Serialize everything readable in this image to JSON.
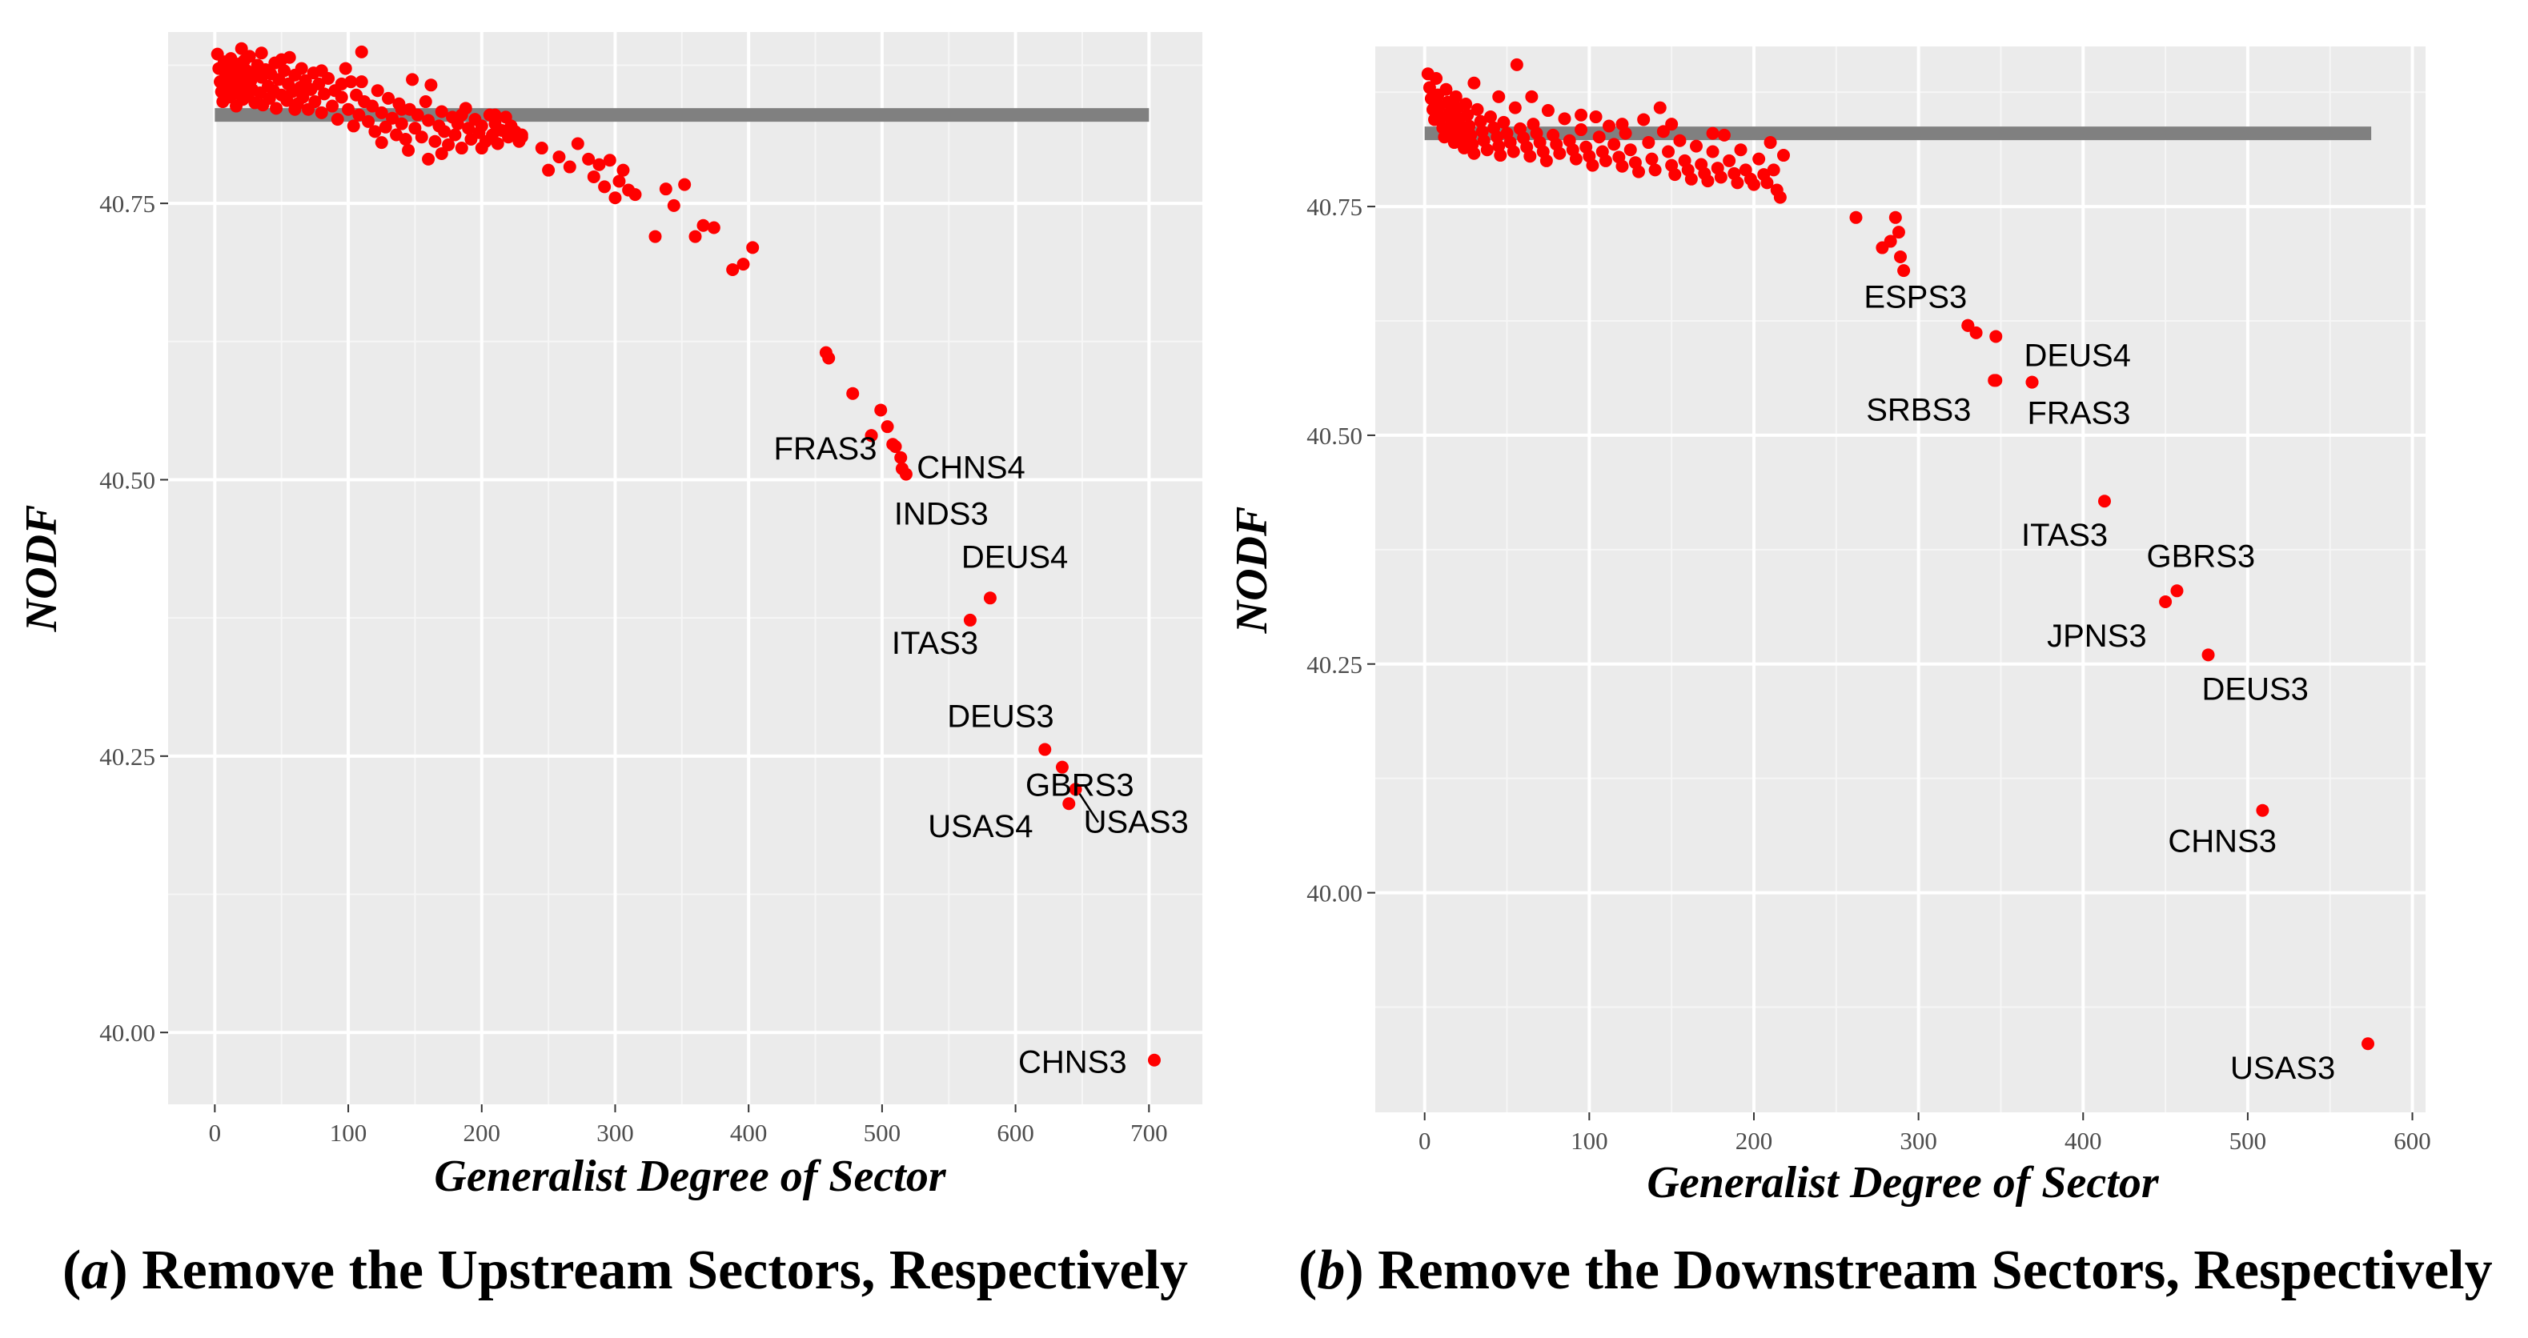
{
  "chart_data": [
    {
      "type": "scatter",
      "panel": "a",
      "caption_letter": "a",
      "caption_text": " Remove the Upstream Sectors,  Respectively",
      "xlabel": "Generalist Degree of Sector",
      "ylabel": "NODF",
      "xlim": [
        -35,
        740
      ],
      "ylim": [
        39.935,
        40.905
      ],
      "xticks": [
        0,
        100,
        200,
        300,
        400,
        500,
        600,
        700
      ],
      "yticks": [
        40.0,
        40.25,
        40.5,
        40.75
      ],
      "ytick_labels": [
        "40.00",
        "40.25",
        "40.50",
        "40.75"
      ],
      "grid": true,
      "point_color": "#ff0000",
      "reference_line": {
        "x": [
          0,
          700
        ],
        "y": 40.83,
        "color": "#808080"
      },
      "cluster_points": [
        [
          2,
          40.885
        ],
        [
          3,
          40.872
        ],
        [
          4,
          40.86
        ],
        [
          5,
          40.851
        ],
        [
          6,
          40.842
        ],
        [
          7,
          40.878
        ],
        [
          8,
          40.865
        ],
        [
          9,
          40.855
        ],
        [
          10,
          40.846
        ],
        [
          11,
          40.869
        ],
        [
          12,
          40.881
        ],
        [
          13,
          40.858
        ],
        [
          14,
          40.849
        ],
        [
          15,
          40.873
        ],
        [
          16,
          40.838
        ],
        [
          17,
          40.862
        ],
        [
          18,
          40.876
        ],
        [
          19,
          40.852
        ],
        [
          20,
          40.866
        ],
        [
          21,
          40.844
        ],
        [
          22,
          40.879
        ],
        [
          23,
          40.857
        ],
        [
          24,
          40.87
        ],
        [
          25,
          40.848
        ],
        [
          26,
          40.883
        ],
        [
          27,
          40.861
        ],
        [
          28,
          40.853
        ],
        [
          29,
          40.868
        ],
        [
          30,
          40.841
        ],
        [
          32,
          40.875
        ],
        [
          34,
          40.85
        ],
        [
          35,
          40.864
        ],
        [
          36,
          40.839
        ],
        [
          38,
          40.871
        ],
        [
          40,
          40.856
        ],
        [
          41,
          40.845
        ],
        [
          42,
          40.867
        ],
        [
          44,
          40.852
        ],
        [
          45,
          40.877
        ],
        [
          46,
          40.836
        ],
        [
          48,
          40.862
        ],
        [
          50,
          40.848
        ],
        [
          52,
          40.87
        ],
        [
          54,
          40.843
        ],
        [
          55,
          40.858
        ],
        [
          56,
          40.882
        ],
        [
          58,
          40.851
        ],
        [
          60,
          40.866
        ],
        [
          62,
          40.84
        ],
        [
          64,
          40.855
        ],
        [
          65,
          40.872
        ],
        [
          66,
          40.846
        ],
        [
          68,
          40.861
        ],
        [
          70,
          40.835
        ],
        [
          72,
          40.853
        ],
        [
          74,
          40.868
        ],
        [
          75,
          40.842
        ],
        [
          78,
          40.858
        ],
        [
          80,
          40.832
        ],
        [
          82,
          40.849
        ],
        [
          85,
          40.863
        ],
        [
          88,
          40.838
        ],
        [
          90,
          40.852
        ],
        [
          92,
          40.826
        ],
        [
          95,
          40.846
        ],
        [
          98,
          40.872
        ],
        [
          100,
          40.835
        ],
        [
          102,
          40.86
        ],
        [
          104,
          40.82
        ],
        [
          106,
          40.848
        ],
        [
          108,
          40.83
        ],
        [
          110,
          40.887
        ],
        [
          112,
          40.842
        ],
        [
          115,
          40.824
        ],
        [
          118,
          40.838
        ],
        [
          120,
          40.815
        ],
        [
          122,
          40.852
        ],
        [
          125,
          40.832
        ],
        [
          128,
          40.819
        ],
        [
          130,
          40.845
        ],
        [
          133,
          40.827
        ],
        [
          136,
          40.812
        ],
        [
          138,
          40.84
        ],
        [
          140,
          40.822
        ],
        [
          143,
          40.808
        ],
        [
          146,
          40.835
        ],
        [
          148,
          40.862
        ],
        [
          150,
          40.818
        ],
        [
          152,
          40.83
        ],
        [
          155,
          40.81
        ],
        [
          158,
          40.842
        ],
        [
          160,
          40.825
        ],
        [
          162,
          40.857
        ],
        [
          165,
          40.806
        ],
        [
          168,
          40.82
        ],
        [
          170,
          40.833
        ],
        [
          172,
          40.815
        ],
        [
          175,
          40.803
        ],
        [
          178,
          40.828
        ],
        [
          180,
          40.812
        ],
        [
          182,
          40.822
        ],
        [
          185,
          40.8
        ],
        [
          188,
          40.836
        ],
        [
          190,
          40.818
        ],
        [
          192,
          40.808
        ],
        [
          195,
          40.826
        ],
        [
          198,
          40.814
        ],
        [
          200,
          40.82
        ],
        [
          203,
          40.806
        ],
        [
          206,
          40.83
        ],
        [
          208,
          40.812
        ],
        [
          210,
          40.822
        ],
        [
          212,
          40.804
        ],
        [
          215,
          40.816
        ],
        [
          218,
          40.828
        ],
        [
          220,
          40.81
        ],
        [
          222,
          40.82
        ],
        [
          225,
          40.815
        ],
        [
          228,
          40.806
        ],
        [
          230,
          40.812
        ],
        [
          230,
          40.81
        ],
        [
          125,
          40.805
        ],
        [
          60,
          40.835
        ],
        [
          20,
          40.89
        ],
        [
          35,
          40.886
        ],
        [
          50,
          40.88
        ],
        [
          80,
          40.87
        ],
        [
          95,
          40.858
        ],
        [
          145,
          40.798
        ],
        [
          110,
          40.86
        ],
        [
          170,
          40.795
        ],
        [
          200,
          40.8
        ],
        [
          185,
          40.83
        ],
        [
          210,
          40.83
        ],
        [
          160,
          40.79
        ],
        [
          140,
          40.835
        ]
      ],
      "tail_points": [
        [
          245,
          40.8
        ],
        [
          250,
          40.78
        ],
        [
          258,
          40.792
        ],
        [
          266,
          40.783
        ],
        [
          272,
          40.804
        ],
        [
          280,
          40.79
        ],
        [
          284,
          40.774
        ],
        [
          288,
          40.785
        ],
        [
          292,
          40.765
        ],
        [
          296,
          40.789
        ],
        [
          300,
          40.755
        ],
        [
          303,
          40.77
        ],
        [
          306,
          40.78
        ],
        [
          310,
          40.762
        ],
        [
          315,
          40.758
        ],
        [
          330,
          40.72
        ],
        [
          338,
          40.763
        ],
        [
          344,
          40.748
        ],
        [
          352,
          40.767
        ],
        [
          360,
          40.72
        ],
        [
          366,
          40.73
        ],
        [
          374,
          40.728
        ],
        [
          388,
          40.69
        ],
        [
          396,
          40.695
        ],
        [
          403,
          40.71
        ],
        [
          458,
          40.615
        ],
        [
          460,
          40.61
        ],
        [
          478,
          40.578
        ],
        [
          492,
          40.54
        ],
        [
          499,
          40.563
        ],
        [
          504,
          40.548
        ],
        [
          510,
          40.53
        ],
        [
          514,
          40.52
        ],
        [
          518,
          40.505
        ]
      ],
      "labeled_points": [
        {
          "label": "FRAS3",
          "x": 492,
          "y": 40.54
        },
        {
          "label": "CHNS4",
          "x": 508,
          "y": 40.532
        },
        {
          "label": "INDS3",
          "x": 515,
          "y": 40.51
        },
        {
          "label": "DEUS4",
          "x": 581,
          "y": 40.393
        },
        {
          "label": "ITAS3",
          "x": 566,
          "y": 40.373
        },
        {
          "label": "DEUS3",
          "x": 622,
          "y": 40.256
        },
        {
          "label": "GBRS3",
          "x": 635,
          "y": 40.24
        },
        {
          "label": "USAS4",
          "x": 640,
          "y": 40.207
        },
        {
          "label": "USAS3",
          "x": 645,
          "y": 40.22
        },
        {
          "label": "CHNS3",
          "x": 704,
          "y": 39.975
        }
      ]
    },
    {
      "type": "scatter",
      "panel": "b",
      "caption_letter": "b",
      "caption_text": " Remove the Downstream Sectors,  Respectively",
      "xlabel": "Generalist Degree of Sector",
      "ylabel": "NODF",
      "xlim": [
        -30,
        608
      ],
      "ylim": [
        39.76,
        40.925
      ],
      "xticks": [
        0,
        100,
        200,
        300,
        400,
        500,
        600
      ],
      "yticks": [
        40.0,
        40.25,
        40.5,
        40.75
      ],
      "ytick_labels": [
        "40.00",
        "40.25",
        "40.50",
        "40.75"
      ],
      "grid": true,
      "point_color": "#ff0000",
      "reference_line": {
        "x": [
          0,
          575
        ],
        "y": 40.83,
        "color": "#808080"
      },
      "cluster_points": [
        [
          2,
          40.895
        ],
        [
          3,
          40.88
        ],
        [
          4,
          40.868
        ],
        [
          5,
          40.856
        ],
        [
          6,
          40.845
        ],
        [
          7,
          40.89
        ],
        [
          8,
          40.872
        ],
        [
          9,
          40.86
        ],
        [
          10,
          40.848
        ],
        [
          11,
          40.836
        ],
        [
          12,
          40.826
        ],
        [
          13,
          40.878
        ],
        [
          14,
          40.864
        ],
        [
          15,
          40.852
        ],
        [
          16,
          40.84
        ],
        [
          17,
          40.83
        ],
        [
          18,
          40.82
        ],
        [
          19,
          40.87
        ],
        [
          20,
          40.858
        ],
        [
          21,
          40.846
        ],
        [
          22,
          40.834
        ],
        [
          23,
          40.824
        ],
        [
          24,
          40.814
        ],
        [
          25,
          40.862
        ],
        [
          26,
          40.85
        ],
        [
          27,
          40.838
        ],
        [
          28,
          40.828
        ],
        [
          29,
          40.818
        ],
        [
          30,
          40.808
        ],
        [
          32,
          40.856
        ],
        [
          34,
          40.843
        ],
        [
          35,
          40.832
        ],
        [
          36,
          40.822
        ],
        [
          38,
          40.812
        ],
        [
          40,
          40.848
        ],
        [
          42,
          40.836
        ],
        [
          44,
          40.826
        ],
        [
          45,
          40.816
        ],
        [
          46,
          40.806
        ],
        [
          48,
          40.842
        ],
        [
          50,
          40.83
        ],
        [
          52,
          40.82
        ],
        [
          54,
          40.81
        ],
        [
          55,
          40.858
        ],
        [
          56,
          40.905
        ],
        [
          58,
          40.835
        ],
        [
          60,
          40.825
        ],
        [
          62,
          40.815
        ],
        [
          64,
          40.805
        ],
        [
          66,
          40.84
        ],
        [
          68,
          40.83
        ],
        [
          70,
          40.82
        ],
        [
          72,
          40.81
        ],
        [
          74,
          40.8
        ],
        [
          75,
          40.855
        ],
        [
          78,
          40.828
        ],
        [
          80,
          40.818
        ],
        [
          82,
          40.808
        ],
        [
          85,
          40.846
        ],
        [
          88,
          40.822
        ],
        [
          90,
          40.812
        ],
        [
          92,
          40.802
        ],
        [
          95,
          40.834
        ],
        [
          98,
          40.815
        ],
        [
          100,
          40.805
        ],
        [
          102,
          40.795
        ],
        [
          104,
          40.848
        ],
        [
          106,
          40.826
        ],
        [
          108,
          40.81
        ],
        [
          110,
          40.8
        ],
        [
          112,
          40.838
        ],
        [
          115,
          40.818
        ],
        [
          118,
          40.804
        ],
        [
          120,
          40.794
        ],
        [
          122,
          40.83
        ],
        [
          125,
          40.812
        ],
        [
          128,
          40.798
        ],
        [
          130,
          40.788
        ],
        [
          133,
          40.845
        ],
        [
          136,
          40.82
        ],
        [
          138,
          40.802
        ],
        [
          140,
          40.79
        ],
        [
          143,
          40.858
        ],
        [
          145,
          40.832
        ],
        [
          148,
          40.81
        ],
        [
          150,
          40.795
        ],
        [
          152,
          40.785
        ],
        [
          155,
          40.822
        ],
        [
          158,
          40.8
        ],
        [
          160,
          40.79
        ],
        [
          162,
          40.78
        ],
        [
          165,
          40.816
        ],
        [
          168,
          40.796
        ],
        [
          170,
          40.786
        ],
        [
          172,
          40.778
        ],
        [
          175,
          40.81
        ],
        [
          178,
          40.792
        ],
        [
          180,
          40.782
        ],
        [
          182,
          40.828
        ],
        [
          185,
          40.8
        ],
        [
          188,
          40.786
        ],
        [
          190,
          40.776
        ],
        [
          192,
          40.812
        ],
        [
          195,
          40.79
        ],
        [
          198,
          40.78
        ],
        [
          200,
          40.774
        ],
        [
          203,
          40.802
        ],
        [
          206,
          40.785
        ],
        [
          208,
          40.776
        ],
        [
          210,
          40.82
        ],
        [
          212,
          40.79
        ],
        [
          214,
          40.768
        ],
        [
          216,
          40.76
        ],
        [
          218,
          40.806
        ],
        [
          30,
          40.885
        ],
        [
          45,
          40.87
        ],
        [
          65,
          40.87
        ],
        [
          95,
          40.85
        ],
        [
          120,
          40.84
        ],
        [
          150,
          40.84
        ],
        [
          175,
          40.83
        ]
      ],
      "tail_points": [
        [
          262,
          40.738
        ],
        [
          278,
          40.705
        ],
        [
          283,
          40.712
        ],
        [
          286,
          40.738
        ],
        [
          288,
          40.722
        ],
        [
          289,
          40.695
        ],
        [
          291,
          40.68
        ],
        [
          330,
          40.62
        ],
        [
          335,
          40.612
        ],
        [
          347,
          40.608
        ],
        [
          347,
          40.56
        ]
      ],
      "labeled_points": [
        {
          "label": "ESPS3",
          "x": 330,
          "y": 40.62
        },
        {
          "label": "DEUS4",
          "x": 369,
          "y": 40.558
        },
        {
          "label": "SRBS3",
          "x": 346,
          "y": 40.56
        },
        {
          "label": "FRAS3",
          "x": 369,
          "y": 40.558
        },
        {
          "label": "ITAS3",
          "x": 413,
          "y": 40.428
        },
        {
          "label": "GBRS3",
          "x": 457,
          "y": 40.33
        },
        {
          "label": "JPNS3",
          "x": 450,
          "y": 40.318
        },
        {
          "label": "DEUS3",
          "x": 476,
          "y": 40.26
        },
        {
          "label": "CHNS3",
          "x": 509,
          "y": 40.09
        },
        {
          "label": "USAS3",
          "x": 573,
          "y": 39.835
        }
      ]
    }
  ]
}
